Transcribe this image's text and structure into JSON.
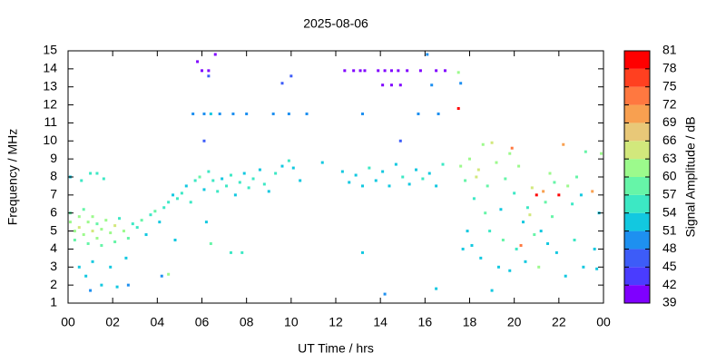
{
  "chart_data": {
    "type": "scatter",
    "title": "2025-08-06",
    "xlabel": "UT Time / hrs",
    "ylabel": "Frequency / MHz",
    "colorbar_label": "Signal Amplitude / dB",
    "xlim": [
      0,
      24
    ],
    "xticks": [
      {
        "value": 0,
        "label": "00"
      },
      {
        "value": 2,
        "label": "02"
      },
      {
        "value": 4,
        "label": "04"
      },
      {
        "value": 6,
        "label": "06"
      },
      {
        "value": 8,
        "label": "08"
      },
      10,
      12,
      14,
      16,
      18,
      20,
      22,
      {
        "value": 24,
        "label": "00"
      }
    ],
    "ylim": [
      1,
      15
    ],
    "yticks": [
      1,
      2,
      3,
      4,
      5,
      6,
      7,
      8,
      9,
      10,
      11,
      12,
      13,
      14,
      15
    ],
    "clim": [
      39,
      81
    ],
    "cticks": [
      39,
      42,
      45,
      48,
      51,
      54,
      57,
      60,
      63,
      66,
      69,
      72,
      75,
      78,
      81
    ],
    "colors": [
      "#7f00ff",
      "#4a3cff",
      "#3d5cf8",
      "#1e90f0",
      "#12c8e0",
      "#3ce8c4",
      "#66f5a8",
      "#9cfa8c",
      "#d2e87c",
      "#e8c878",
      "#f8a050",
      "#ff7840",
      "#ff4020",
      "#ff0000"
    ],
    "x": [
      0.1,
      0.1,
      0.3,
      0.3,
      0.5,
      0.5,
      0.7,
      0.7,
      0.9,
      0.9,
      1.1,
      1.1,
      1.3,
      1.3,
      1.5,
      1.5,
      1.7,
      1.9,
      2.1,
      2.1,
      2.3,
      2.5,
      2.7,
      2.9,
      1,
      1.3,
      0.6,
      1.6,
      0.1,
      0.5,
      0.8,
      1.1,
      1,
      1.5,
      1.9,
      2.2,
      2.6,
      2.7,
      3.1,
      3.3,
      3.5,
      3.7,
      3.9,
      4.1,
      4.3,
      4.5,
      4.7,
      4.9,
      4.2,
      4.5,
      4.8,
      5.1,
      5.3,
      5.5,
      5.7,
      5.9,
      6.1,
      6.3,
      6.5,
      6.2,
      6.4,
      6.7,
      6.9,
      7.1,
      7.3,
      7.5,
      7.7,
      7.9,
      8.1,
      8.3,
      8.6,
      8.8,
      9.0,
      9.3,
      9.6,
      9.9,
      10.1,
      10.4,
      7.3,
      7.8,
      5.6,
      6.1,
      6.4,
      6.8,
      7.4,
      8.0,
      9.2,
      9.9,
      10.7,
      6.1,
      5.8,
      6.0,
      6.3,
      6.3,
      6.6,
      9.6,
      10.0,
      11.4,
      12.3,
      12.6,
      12.9,
      13.2,
      13.5,
      13.8,
      14.1,
      14.4,
      14.7,
      15.0,
      15.3,
      15.6,
      15.9,
      16.2,
      16.5,
      16.8,
      12.4,
      12.8,
      13.1,
      13.3,
      13.9,
      14.2,
      14.5,
      14.8,
      15.2,
      15.8,
      16.5,
      16.9,
      14.1,
      14.5,
      14.9,
      16.1,
      16.3,
      13.2,
      15.7,
      16.6,
      14.9,
      13.2,
      14.2,
      16.5,
      17.5,
      17.6,
      17.5,
      17.6,
      17.8,
      18.0,
      18.2,
      18.4,
      18.6,
      18.8,
      19.0,
      19.2,
      19.4,
      19.6,
      19.8,
      20.0,
      20.2,
      20.4,
      20.6,
      20.8,
      21.0,
      21.2,
      21.4,
      21.6,
      21.8,
      22.0,
      22.2,
      22.4,
      22.6,
      22.8,
      23.0,
      23.2,
      23.5,
      23.8,
      23.9,
      18.1,
      18.5,
      18.9,
      19.3,
      19.5,
      19.8,
      20.1,
      20.5,
      20.9,
      21.1,
      21.5,
      21.9,
      22.3,
      22.7,
      23.1,
      23.6,
      23.7,
      19.0,
      20.3,
      18.3,
      19.9,
      21.3,
      18.7,
      17.9,
      17.7,
      20.7,
      21.7
    ],
    "y": [
      5.5,
      6,
      5,
      4.5,
      5.8,
      5.2,
      4.8,
      6.2,
      5.5,
      4.3,
      5,
      5.8,
      4.6,
      5.4,
      5.1,
      4.2,
      5.6,
      4.9,
      5.3,
      4.4,
      5.7,
      5,
      4.6,
      5.4,
      8.2,
      8.2,
      7.8,
      7.9,
      8,
      3,
      2.5,
      3.3,
      1.7,
      2,
      3,
      1.9,
      3.5,
      2,
      5.2,
      5.6,
      4.8,
      5.9,
      6.1,
      5.5,
      6.3,
      6.6,
      7.0,
      6.8,
      2.5,
      2.6,
      4.5,
      7.1,
      7.5,
      6.6,
      7.8,
      8.0,
      7.3,
      8.3,
      7.8,
      5.5,
      4.3,
      7.2,
      7.9,
      7.5,
      8.1,
      7.0,
      7.7,
      8.2,
      7.4,
      7.9,
      8.4,
      7.6,
      7.2,
      8.2,
      8.6,
      8.9,
      8.5,
      7.8,
      3.8,
      3.8,
      11.5,
      11.5,
      11.5,
      11.5,
      11.5,
      11.5,
      11.5,
      11.5,
      11.5,
      10.0,
      14.4,
      13.9,
      13.9,
      13.6,
      14.8,
      13.2,
      13.6,
      8.8,
      8.3,
      7.7,
      8.1,
      7.5,
      8.5,
      7.8,
      8.3,
      7.5,
      8.7,
      8.0,
      7.6,
      8.4,
      7.9,
      8.2,
      7.5,
      8.7,
      13.9,
      13.9,
      13.9,
      13.9,
      13.9,
      13.9,
      13.9,
      13.9,
      13.9,
      13.9,
      13.9,
      13.9,
      13.1,
      13.1,
      13.1,
      14.8,
      13.1,
      11.5,
      11.5,
      11.5,
      10.0,
      3.8,
      1.5,
      1.8,
      11.8,
      13.2,
      13.8,
      8.6,
      7.8,
      9.0,
      6.8,
      8.4,
      9.8,
      7.5,
      9.9,
      8.8,
      6.2,
      7.9,
      9.3,
      7.1,
      8.6,
      5.5,
      6.3,
      7.4,
      7.0,
      5.0,
      6.6,
      8.2,
      7.7,
      7.0,
      9.8,
      7.5,
      6.5,
      8.0,
      7.0,
      9.4,
      7.2,
      6.0,
      9.3,
      4.2,
      3.5,
      5.0,
      3.0,
      4.5,
      2.8,
      4.0,
      3.3,
      4.8,
      3.0,
      4.3,
      3.8,
      2.5,
      4.5,
      3.0,
      4.0,
      2.9,
      1.7,
      4.2,
      8.0,
      9.6,
      7.2,
      6.0,
      5.0,
      4.0,
      5.9,
      5.8
    ],
    "amplitude": [
      60,
      57,
      60,
      57,
      60,
      63,
      60,
      57,
      60,
      57,
      63,
      60,
      60,
      57,
      60,
      57,
      60,
      60,
      63,
      57,
      54,
      60,
      57,
      54,
      54,
      54,
      54,
      54,
      51,
      51,
      51,
      51,
      48,
      51,
      51,
      51,
      51,
      48,
      54,
      57,
      51,
      54,
      57,
      51,
      54,
      54,
      51,
      54,
      48,
      60,
      51,
      54,
      51,
      54,
      54,
      57,
      51,
      54,
      54,
      51,
      57,
      54,
      51,
      54,
      54,
      51,
      54,
      51,
      54,
      54,
      51,
      54,
      51,
      54,
      51,
      54,
      51,
      51,
      54,
      54,
      48,
      48,
      51,
      48,
      48,
      48,
      48,
      48,
      48,
      45,
      40,
      40,
      40,
      45,
      40,
      45,
      45,
      51,
      51,
      51,
      51,
      51,
      54,
      51,
      51,
      51,
      51,
      54,
      51,
      51,
      54,
      51,
      51,
      54,
      40,
      40,
      40,
      40,
      40,
      40,
      40,
      40,
      40,
      40,
      40,
      40,
      40,
      40,
      40,
      48,
      48,
      48,
      48,
      48,
      45,
      51,
      48,
      51,
      78,
      48,
      60,
      60,
      57,
      60,
      54,
      63,
      60,
      57,
      63,
      60,
      51,
      57,
      60,
      54,
      60,
      51,
      54,
      63,
      78,
      51,
      57,
      60,
      57,
      78,
      69,
      60,
      54,
      57,
      51,
      57,
      69,
      51,
      60,
      51,
      51,
      54,
      51,
      57,
      51,
      54,
      51,
      57,
      60,
      51,
      51,
      51,
      54,
      51,
      51,
      51,
      51,
      72,
      63,
      72,
      69,
      57,
      51,
      51,
      63,
      57
    ]
  }
}
